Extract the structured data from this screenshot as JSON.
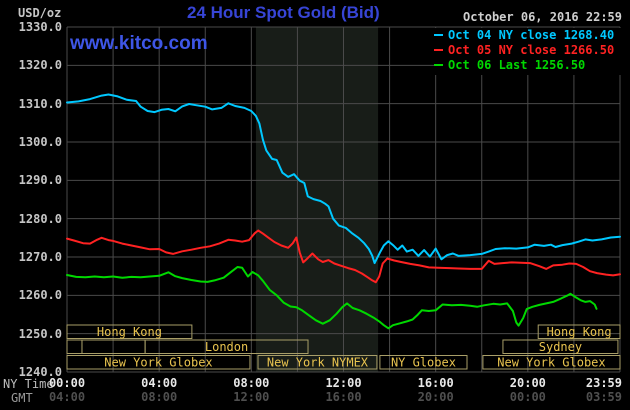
{
  "header": {
    "units_label": "USD/oz",
    "title": "24 Hour Spot Gold (Bid)",
    "datetime": "October 06, 2016 22:59",
    "watermark": "www.kitco.com"
  },
  "legend": [
    {
      "label": "Oct 04 NY close 1268.40",
      "color": "#00c8ff"
    },
    {
      "label": "Oct 05 NY close 1266.50",
      "color": "#ff2222"
    },
    {
      "label": "Oct 06 Last 1256.50",
      "color": "#00d800"
    }
  ],
  "axes": {
    "x_primary_label": "NY Time",
    "x_secondary_label": "GMT",
    "x_primary_ticks": [
      "00:00",
      "04:00",
      "08:00",
      "12:00",
      "16:00",
      "20:00",
      "23:59"
    ],
    "x_secondary_ticks": [
      "04:00",
      "08:00",
      "12:00",
      "16:00",
      "20:00",
      "00:00",
      "03:59"
    ],
    "primary_tick_color": "#e8e8e8",
    "secondary_tick_color": "#4f4f4f"
  },
  "colors": {
    "background": "#000000",
    "grid": "#4a4a4a",
    "highlight_region": "#181d18",
    "session_border": "#a89e68",
    "session_text": "#e9c44f",
    "title_blue": "#3745d6",
    "watermark_blue": "#3e56e6"
  },
  "chart_data": {
    "type": "line",
    "title": "24 Hour Spot Gold (Bid)",
    "ylabel": "USD/oz",
    "ylim": [
      1240,
      1330
    ],
    "y_tick_step": 10,
    "xlim_hours": [
      0,
      24
    ],
    "x_tick_hours": [
      0,
      4,
      8,
      12,
      16,
      20,
      23.983
    ],
    "x_grid_step_hours": 2,
    "grid": true,
    "legend_position": "top-right",
    "highlight_region_hours": [
      8.2,
      13.5
    ],
    "series": [
      {
        "name": "Oct 04 NY close 1268.40",
        "color": "#00c8ff",
        "points": [
          [
            0,
            1310.3
          ],
          [
            0.5,
            1310.6
          ],
          [
            1,
            1311.2
          ],
          [
            1.5,
            1312.1
          ],
          [
            1.8,
            1312.4
          ],
          [
            2.2,
            1311.9
          ],
          [
            2.6,
            1311.0
          ],
          [
            3,
            1310.7
          ],
          [
            3.2,
            1309.2
          ],
          [
            3.5,
            1308.1
          ],
          [
            3.8,
            1307.8
          ],
          [
            4.1,
            1308.4
          ],
          [
            4.4,
            1308.6
          ],
          [
            4.7,
            1308.0
          ],
          [
            5,
            1309.3
          ],
          [
            5.3,
            1309.9
          ],
          [
            5.6,
            1309.6
          ],
          [
            6,
            1309.2
          ],
          [
            6.3,
            1308.5
          ],
          [
            6.7,
            1308.9
          ],
          [
            7,
            1310.1
          ],
          [
            7.3,
            1309.4
          ],
          [
            7.7,
            1308.9
          ],
          [
            8,
            1308.1
          ],
          [
            8.2,
            1306.8
          ],
          [
            8.35,
            1304.8
          ],
          [
            8.5,
            1300.6
          ],
          [
            8.65,
            1297.8
          ],
          [
            8.9,
            1295.6
          ],
          [
            9.1,
            1295.3
          ],
          [
            9.35,
            1292.0
          ],
          [
            9.6,
            1290.9
          ],
          [
            9.85,
            1291.6
          ],
          [
            10.1,
            1289.9
          ],
          [
            10.3,
            1289.3
          ],
          [
            10.45,
            1285.8
          ],
          [
            10.7,
            1285.1
          ],
          [
            11,
            1284.6
          ],
          [
            11.2,
            1283.9
          ],
          [
            11.35,
            1283.2
          ],
          [
            11.55,
            1280.0
          ],
          [
            11.8,
            1278.2
          ],
          [
            12.1,
            1277.6
          ],
          [
            12.35,
            1276.3
          ],
          [
            12.65,
            1275.0
          ],
          [
            12.9,
            1273.6
          ],
          [
            13.1,
            1272.1
          ],
          [
            13.25,
            1270.3
          ],
          [
            13.35,
            1268.4
          ],
          [
            13.6,
            1271.4
          ],
          [
            13.75,
            1273.0
          ],
          [
            13.95,
            1274.1
          ],
          [
            14.15,
            1273.1
          ],
          [
            14.35,
            1271.9
          ],
          [
            14.55,
            1273.0
          ],
          [
            14.75,
            1271.4
          ],
          [
            15,
            1271.9
          ],
          [
            15.25,
            1270.3
          ],
          [
            15.5,
            1271.8
          ],
          [
            15.75,
            1270.1
          ],
          [
            16,
            1272.2
          ],
          [
            16.25,
            1269.4
          ],
          [
            16.5,
            1270.5
          ],
          [
            16.75,
            1270.9
          ],
          [
            17,
            1270.3
          ],
          [
            17.5,
            1270.5
          ],
          [
            18,
            1270.8
          ],
          [
            18.3,
            1271.4
          ],
          [
            18.6,
            1272.1
          ],
          [
            19,
            1272.3
          ],
          [
            19.5,
            1272.2
          ],
          [
            20,
            1272.5
          ],
          [
            20.3,
            1273.2
          ],
          [
            20.7,
            1272.9
          ],
          [
            21,
            1273.2
          ],
          [
            21.2,
            1272.6
          ],
          [
            21.5,
            1273.1
          ],
          [
            21.9,
            1273.5
          ],
          [
            22.2,
            1274.0
          ],
          [
            22.5,
            1274.6
          ],
          [
            22.8,
            1274.3
          ],
          [
            23.2,
            1274.6
          ],
          [
            23.6,
            1275.1
          ],
          [
            24,
            1275.3
          ]
        ]
      },
      {
        "name": "Oct 05 NY close 1266.50",
        "color": "#ff2222",
        "points": [
          [
            0,
            1274.8
          ],
          [
            0.3,
            1274.3
          ],
          [
            0.7,
            1273.6
          ],
          [
            1,
            1273.5
          ],
          [
            1.3,
            1274.5
          ],
          [
            1.5,
            1275.0
          ],
          [
            1.8,
            1274.4
          ],
          [
            2,
            1274.2
          ],
          [
            2.4,
            1273.5
          ],
          [
            2.8,
            1273.0
          ],
          [
            3.2,
            1272.5
          ],
          [
            3.6,
            1272.0
          ],
          [
            4,
            1272.1
          ],
          [
            4.3,
            1271.2
          ],
          [
            4.6,
            1270.8
          ],
          [
            5,
            1271.5
          ],
          [
            5.4,
            1271.9
          ],
          [
            5.8,
            1272.4
          ],
          [
            6.2,
            1272.8
          ],
          [
            6.6,
            1273.5
          ],
          [
            7,
            1274.5
          ],
          [
            7.3,
            1274.3
          ],
          [
            7.6,
            1274.0
          ],
          [
            7.9,
            1274.4
          ],
          [
            8.15,
            1276.2
          ],
          [
            8.3,
            1276.9
          ],
          [
            8.5,
            1276.1
          ],
          [
            8.75,
            1275.0
          ],
          [
            9,
            1273.9
          ],
          [
            9.3,
            1273.0
          ],
          [
            9.6,
            1272.4
          ],
          [
            9.8,
            1273.6
          ],
          [
            9.95,
            1275.1
          ],
          [
            10.1,
            1271.2
          ],
          [
            10.25,
            1268.6
          ],
          [
            10.45,
            1269.7
          ],
          [
            10.65,
            1270.9
          ],
          [
            10.9,
            1269.4
          ],
          [
            11.1,
            1268.7
          ],
          [
            11.35,
            1269.2
          ],
          [
            11.6,
            1268.3
          ],
          [
            11.9,
            1267.7
          ],
          [
            12.2,
            1267.1
          ],
          [
            12.5,
            1266.6
          ],
          [
            12.8,
            1265.7
          ],
          [
            13.05,
            1264.7
          ],
          [
            13.25,
            1263.9
          ],
          [
            13.4,
            1263.4
          ],
          [
            13.55,
            1264.9
          ],
          [
            13.7,
            1268.3
          ],
          [
            13.9,
            1269.6
          ],
          [
            14.2,
            1269.1
          ],
          [
            14.5,
            1268.7
          ],
          [
            14.9,
            1268.2
          ],
          [
            15.3,
            1267.8
          ],
          [
            15.7,
            1267.3
          ],
          [
            16.1,
            1267.2
          ],
          [
            16.6,
            1267.1
          ],
          [
            17,
            1267.0
          ],
          [
            17.5,
            1266.9
          ],
          [
            18,
            1266.9
          ],
          [
            18.3,
            1269.0
          ],
          [
            18.55,
            1268.2
          ],
          [
            18.9,
            1268.4
          ],
          [
            19.3,
            1268.6
          ],
          [
            19.7,
            1268.5
          ],
          [
            20.1,
            1268.4
          ],
          [
            20.5,
            1267.6
          ],
          [
            20.8,
            1266.9
          ],
          [
            21.1,
            1267.8
          ],
          [
            21.5,
            1268.0
          ],
          [
            21.8,
            1268.3
          ],
          [
            22.1,
            1268.2
          ],
          [
            22.4,
            1267.4
          ],
          [
            22.7,
            1266.3
          ],
          [
            23,
            1265.8
          ],
          [
            23.4,
            1265.4
          ],
          [
            23.7,
            1265.2
          ],
          [
            24,
            1265.5
          ]
        ]
      },
      {
        "name": "Oct 06 Last 1256.50",
        "color": "#00d800",
        "points": [
          [
            0,
            1265.3
          ],
          [
            0.4,
            1264.8
          ],
          [
            0.8,
            1264.7
          ],
          [
            1.2,
            1264.9
          ],
          [
            1.6,
            1264.7
          ],
          [
            2,
            1264.9
          ],
          [
            2.4,
            1264.6
          ],
          [
            2.8,
            1264.8
          ],
          [
            3.2,
            1264.7
          ],
          [
            3.6,
            1264.9
          ],
          [
            4,
            1265.1
          ],
          [
            4.4,
            1266.0
          ],
          [
            4.7,
            1265.0
          ],
          [
            5,
            1264.5
          ],
          [
            5.4,
            1264.0
          ],
          [
            5.8,
            1263.6
          ],
          [
            6.1,
            1263.5
          ],
          [
            6.4,
            1263.9
          ],
          [
            6.8,
            1264.6
          ],
          [
            7.1,
            1266.0
          ],
          [
            7.4,
            1267.4
          ],
          [
            7.6,
            1267.2
          ],
          [
            7.85,
            1264.9
          ],
          [
            8.05,
            1266.1
          ],
          [
            8.3,
            1265.2
          ],
          [
            8.5,
            1263.8
          ],
          [
            8.8,
            1261.4
          ],
          [
            9.1,
            1260.0
          ],
          [
            9.4,
            1258.1
          ],
          [
            9.7,
            1257.1
          ],
          [
            9.95,
            1256.9
          ],
          [
            10.2,
            1256.1
          ],
          [
            10.5,
            1254.8
          ],
          [
            10.8,
            1253.5
          ],
          [
            11.1,
            1252.6
          ],
          [
            11.4,
            1253.5
          ],
          [
            11.7,
            1255.2
          ],
          [
            11.95,
            1256.9
          ],
          [
            12.15,
            1257.9
          ],
          [
            12.4,
            1256.7
          ],
          [
            12.7,
            1256.1
          ],
          [
            13,
            1255.2
          ],
          [
            13.3,
            1254.2
          ],
          [
            13.55,
            1253.2
          ],
          [
            13.75,
            1252.2
          ],
          [
            13.95,
            1251.4
          ],
          [
            14.15,
            1252.2
          ],
          [
            14.45,
            1252.7
          ],
          [
            14.75,
            1253.2
          ],
          [
            15,
            1253.7
          ],
          [
            15.2,
            1254.8
          ],
          [
            15.4,
            1256.1
          ],
          [
            15.7,
            1255.9
          ],
          [
            16,
            1256.1
          ],
          [
            16.3,
            1257.6
          ],
          [
            16.7,
            1257.4
          ],
          [
            17.1,
            1257.5
          ],
          [
            17.5,
            1257.3
          ],
          [
            17.8,
            1257.0
          ],
          [
            18.1,
            1257.4
          ],
          [
            18.5,
            1257.8
          ],
          [
            18.8,
            1257.6
          ],
          [
            19.1,
            1257.9
          ],
          [
            19.35,
            1255.9
          ],
          [
            19.5,
            1252.9
          ],
          [
            19.6,
            1252.1
          ],
          [
            19.8,
            1254.1
          ],
          [
            19.95,
            1256.4
          ],
          [
            20.2,
            1257.0
          ],
          [
            20.5,
            1257.5
          ],
          [
            20.8,
            1257.9
          ],
          [
            21.1,
            1258.3
          ],
          [
            21.45,
            1259.2
          ],
          [
            21.7,
            1259.9
          ],
          [
            21.85,
            1260.4
          ],
          [
            22.05,
            1259.6
          ],
          [
            22.3,
            1258.7
          ],
          [
            22.5,
            1258.3
          ],
          [
            22.7,
            1258.5
          ],
          [
            22.9,
            1257.6
          ],
          [
            22.98,
            1256.5
          ]
        ]
      }
    ],
    "sessions": [
      {
        "row": 0,
        "label": "Hong Kong",
        "start": 0,
        "end": 5.42
      },
      {
        "row": 0,
        "label": "Hong Kong",
        "start": 20.45,
        "end": 24
      },
      {
        "row": 1,
        "label": "",
        "start": 0,
        "end": 0.65
      },
      {
        "row": 1,
        "label": "",
        "start": 0.65,
        "end": 3.39
      },
      {
        "row": 1,
        "label": "London",
        "start": 3.39,
        "end": 10.46
      },
      {
        "row": 1,
        "label": "Sydney",
        "start": 18.92,
        "end": 23.91
      },
      {
        "row": 2,
        "label": "New York Globex",
        "start": 0,
        "end": 7.94
      },
      {
        "row": 2,
        "label": "New York NYMEX",
        "start": 8.29,
        "end": 13.45
      },
      {
        "row": 2,
        "label": "NY Globex",
        "start": 13.58,
        "end": 17.36
      },
      {
        "row": 2,
        "label": "New York Globex",
        "start": 18.05,
        "end": 24
      }
    ]
  }
}
